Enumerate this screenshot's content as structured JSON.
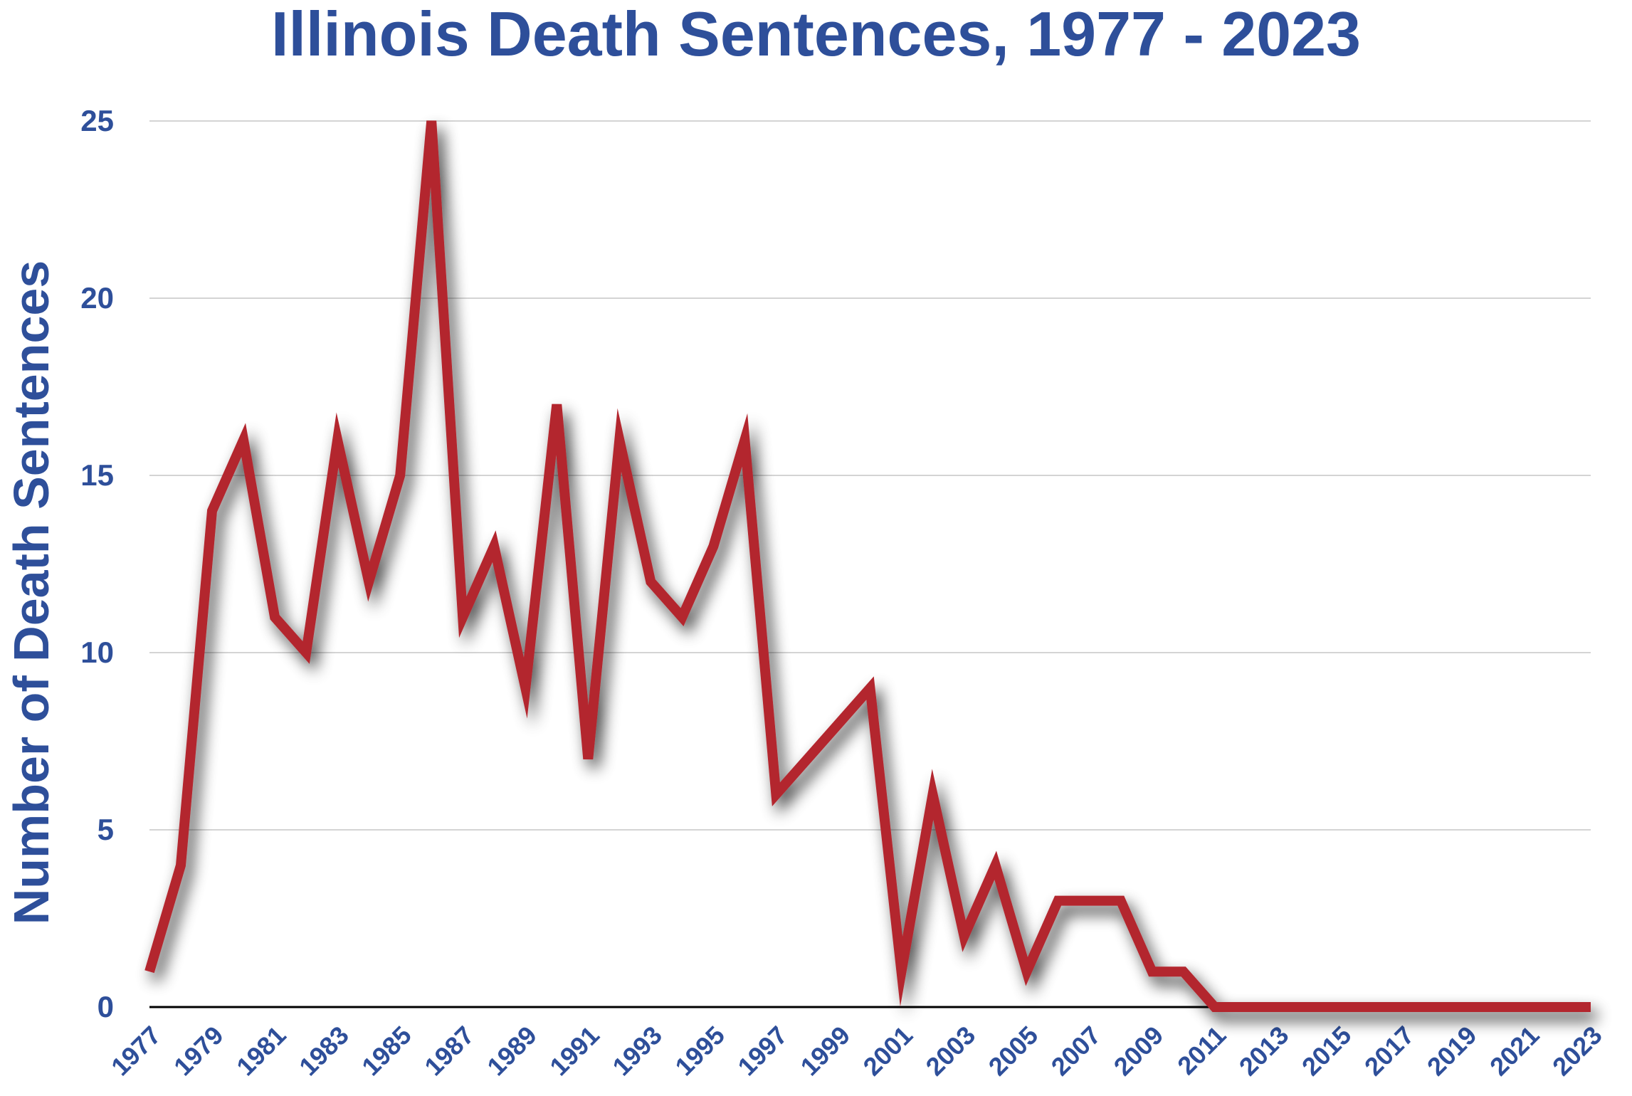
{
  "chart_data": {
    "type": "line",
    "title": "Illinois Death Sentences, 1977 - 2023",
    "xlabel": "",
    "ylabel": "Number of Death Sentences",
    "ylim": [
      0,
      25
    ],
    "yticks": [
      0,
      5,
      10,
      15,
      20,
      25
    ],
    "x": [
      1977,
      1978,
      1979,
      1980,
      1981,
      1982,
      1983,
      1984,
      1985,
      1986,
      1987,
      1988,
      1989,
      1990,
      1991,
      1992,
      1993,
      1994,
      1995,
      1996,
      1997,
      1998,
      1999,
      2000,
      2001,
      2002,
      2003,
      2004,
      2005,
      2006,
      2007,
      2008,
      2009,
      2010,
      2011,
      2012,
      2013,
      2014,
      2015,
      2016,
      2017,
      2018,
      2019,
      2020,
      2021,
      2022,
      2023
    ],
    "xticks": [
      "1977",
      "1979",
      "1981",
      "1983",
      "1985",
      "1987",
      "1989",
      "1991",
      "1993",
      "1995",
      "1997",
      "1999",
      "2001",
      "2003",
      "2005",
      "2007",
      "2009",
      "2011",
      "2013",
      "2015",
      "2017",
      "2019",
      "2021",
      "2023"
    ],
    "series": [
      {
        "values": [
          1,
          4,
          14,
          16,
          11,
          10,
          16,
          12,
          15,
          25,
          11,
          13,
          9,
          17,
          7,
          16,
          12,
          11,
          13,
          16,
          6,
          7,
          8,
          9,
          1,
          6,
          2,
          4,
          1,
          3,
          3,
          3,
          1,
          1,
          0,
          0,
          0,
          0,
          0,
          0,
          0,
          0,
          0,
          0,
          0,
          0,
          0
        ]
      }
    ],
    "grid": true,
    "legend": "none",
    "colors": {
      "line": "#b3262f",
      "text": "#2e4f9a",
      "grid": "#d4d4d4",
      "axis": "#000000"
    }
  }
}
